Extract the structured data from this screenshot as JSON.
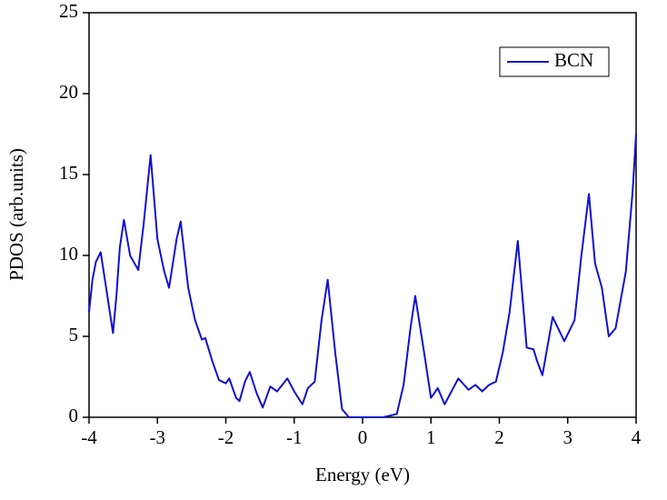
{
  "chart_data": {
    "type": "line",
    "x_label": "Energy (eV)",
    "y_label": "PDOS (arb.units)",
    "x": [
      -4,
      -3.95,
      -3.9,
      -3.83,
      -3.75,
      -3.65,
      -3.6,
      -3.55,
      -3.49,
      -3.4,
      -3.28,
      -3.2,
      -3.1,
      -3.0,
      -2.9,
      -2.83,
      -2.72,
      -2.66,
      -2.55,
      -2.45,
      -2.35,
      -2.3,
      -2.2,
      -2.1,
      -2.0,
      -1.95,
      -1.85,
      -1.8,
      -1.72,
      -1.65,
      -1.55,
      -1.46,
      -1.35,
      -1.25,
      -1.1,
      -1.0,
      -0.88,
      -0.8,
      -0.7,
      -0.6,
      -0.51,
      -0.4,
      -0.3,
      -0.2,
      0,
      0.3,
      0.5,
      0.6,
      0.7,
      0.77,
      0.9,
      1.0,
      1.1,
      1.2,
      1.4,
      1.55,
      1.65,
      1.75,
      1.85,
      1.95,
      2.05,
      2.15,
      2.27,
      2.4,
      2.5,
      2.55,
      2.63,
      2.78,
      2.95,
      3.1,
      3.2,
      3.31,
      3.4,
      3.5,
      3.6,
      3.7,
      3.85,
      3.95,
      4.0
    ],
    "series": [
      {
        "name": "BCN",
        "color": "#1010d0",
        "values": [
          6.5,
          8.5,
          9.6,
          10.2,
          8.0,
          5.2,
          7.5,
          10.5,
          12.2,
          10.0,
          9.1,
          12.0,
          16.2,
          11.0,
          9.0,
          8.0,
          11.0,
          12.1,
          8.0,
          6.0,
          4.8,
          4.9,
          3.5,
          2.3,
          2.1,
          2.4,
          1.2,
          1.0,
          2.2,
          2.8,
          1.5,
          0.6,
          1.9,
          1.6,
          2.4,
          1.6,
          0.8,
          1.8,
          2.2,
          6.0,
          8.5,
          4.0,
          0.5,
          0,
          0,
          0,
          0.2,
          2.0,
          5.5,
          7.5,
          4.0,
          1.2,
          1.8,
          0.8,
          2.4,
          1.7,
          2.0,
          1.6,
          2.0,
          2.2,
          4.0,
          6.5,
          10.9,
          4.3,
          4.2,
          3.5,
          2.6,
          6.2,
          4.7,
          6.0,
          10.0,
          13.8,
          9.5,
          8.0,
          5.0,
          5.5,
          9.0,
          14.0,
          17.5
        ]
      }
    ],
    "xlim": [
      -4,
      4
    ],
    "xticks": [
      -4,
      -3,
      -2,
      -1,
      0,
      1,
      2,
      3,
      4
    ],
    "ylim": [
      0,
      25
    ],
    "yticks": [
      0,
      5,
      10,
      15,
      20,
      25
    ],
    "legend": "upper right"
  }
}
